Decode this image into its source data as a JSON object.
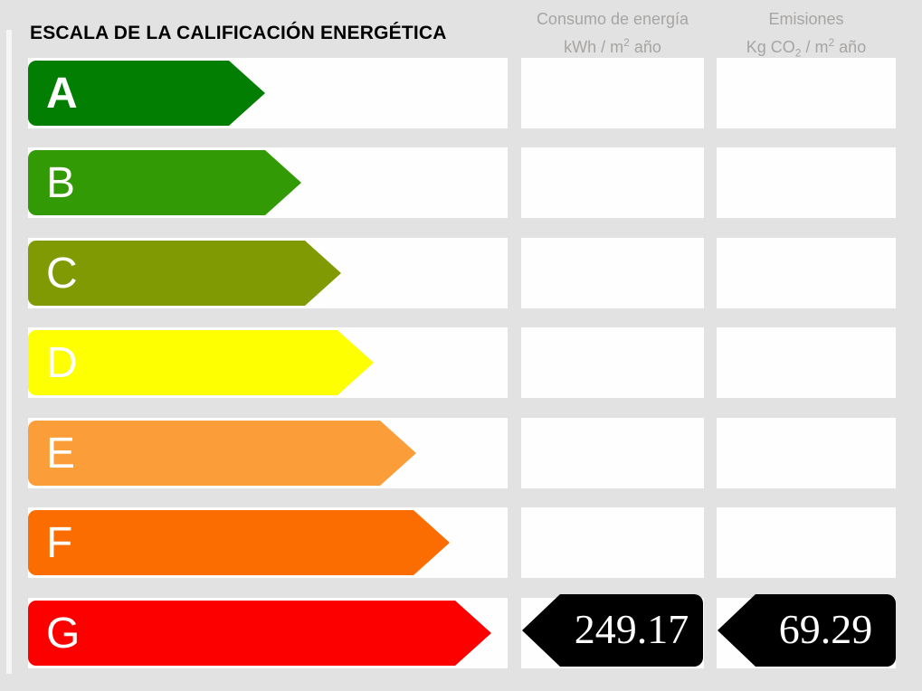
{
  "title": "ESCALA DE LA CALIFICACIÓN ENERGÉTICA",
  "columns": [
    {
      "id": "consumo",
      "title": "Consumo de energía",
      "unit": {
        "pre": "kWh / m",
        "sup": "2",
        "post": " año"
      }
    },
    {
      "id": "emisiones",
      "title": "Emisiones",
      "unit": {
        "pre": "Kg CO",
        "sub": "2",
        "mid": " / m",
        "sup": "2",
        "post": " año"
      }
    }
  ],
  "scale": {
    "ratings": [
      {
        "letter": "A",
        "color": "#027e02",
        "bar_body_width": 222,
        "bold": true
      },
      {
        "letter": "B",
        "color": "#319a04",
        "bar_body_width": 262,
        "bold": false
      },
      {
        "letter": "C",
        "color": "#7f9a02",
        "bar_body_width": 306,
        "bold": false
      },
      {
        "letter": "D",
        "color": "#feff00",
        "bar_body_width": 342,
        "bold": false
      },
      {
        "letter": "E",
        "color": "#fb9d38",
        "bar_body_width": 389,
        "bold": false
      },
      {
        "letter": "F",
        "color": "#fb6d00",
        "bar_body_width": 426,
        "bold": false
      },
      {
        "letter": "G",
        "color": "#fc0000",
        "bar_body_width": 472,
        "bold": false
      }
    ]
  },
  "result": {
    "rating": "G",
    "consumption_value": "249.17",
    "emissions_value": "69.29",
    "arrow_color": "#000000",
    "text_color": "#ffffff"
  },
  "colors": {
    "background": "#e3e2e2",
    "row_box": "#fefefe",
    "header_text": "#a6a5a3",
    "title_text": "#000000"
  },
  "chart_data": {
    "type": "bar",
    "title": "ESCALA DE LA CALIFICACIÓN ENERGÉTICA",
    "categories": [
      "A",
      "B",
      "C",
      "D",
      "E",
      "F",
      "G"
    ],
    "values": [
      262,
      302,
      346,
      382,
      429,
      466,
      512
    ],
    "values_note": "relative bar lengths in px, shortest A to longest G",
    "colors": [
      "#027e02",
      "#319a04",
      "#7f9a02",
      "#feff00",
      "#fb9d38",
      "#fb6d00",
      "#fc0000"
    ],
    "columns": [
      "Consumo de energía kWh / m2 año",
      "Emisiones Kg CO2 / m2 año"
    ],
    "result": {
      "rating": "G",
      "consumo_kwh_m2_ano": 249.17,
      "emisiones_kgco2_m2_ano": 69.29
    },
    "legend_position": "none",
    "grid": false
  }
}
